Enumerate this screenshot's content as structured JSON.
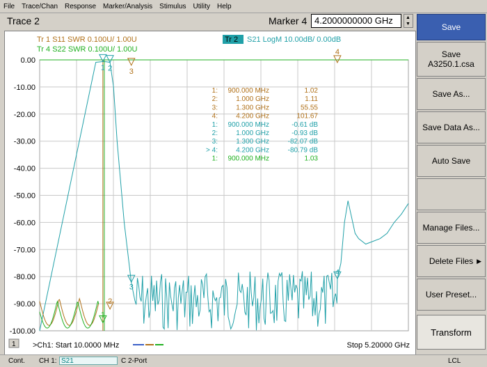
{
  "menu": [
    "File",
    "Trace/Chan",
    "Response",
    "Marker/Analysis",
    "Stimulus",
    "Utility",
    "Help"
  ],
  "header": {
    "trace_title": "Trace 2",
    "marker_label": "Marker 4",
    "marker_value": "4.2000000000 GHz"
  },
  "traces": [
    {
      "label": "Tr  1  S11 SWR 0.100U/  1.00U",
      "color": "#b07018"
    },
    {
      "label": "Tr  4  S22 SWR 0.100U/  1.00U",
      "color": "#20b020"
    },
    {
      "label_box": "Tr  2",
      "label_rest": "S21 LogM 10.00dB/  0.00dB",
      "color": "#20a0a8"
    }
  ],
  "chart_data": {
    "type": "line",
    "ylim": [
      -100,
      0
    ],
    "y_ticks": [
      "0.00",
      "-10.00",
      "-20.00",
      "-30.00",
      "-40.00",
      "-50.00",
      "-60.00",
      "-70.00",
      "-80.00",
      "-90.00",
      "-100.00"
    ],
    "x_start": "10.0000 MHz",
    "x_stop": "5.20000 GHz",
    "start_label": ">Ch1: Start  10.0000 MHz",
    "stop_label": "Stop  5.20000 GHz",
    "channel_num": "1",
    "series": [
      {
        "name": "S21 LogM",
        "x_ghz": [
          0.01,
          0.8,
          0.87,
          0.9,
          0.95,
          1.0,
          1.05,
          1.1,
          1.2,
          1.3,
          4.2,
          4.25,
          4.3,
          4.35,
          4.4,
          4.45,
          4.5,
          4.6,
          4.7,
          4.8,
          4.9,
          5.0,
          5.1,
          5.2
        ],
        "values": [
          -100,
          -0.9,
          -0.7,
          -0.61,
          -0.7,
          -0.93,
          -10,
          -30,
          -60,
          -82.07,
          -80.79,
          -75,
          -60,
          -52,
          -58,
          -64,
          -66,
          -68,
          -67,
          -66,
          -64,
          -60,
          -57,
          -53
        ]
      }
    ],
    "markers": [
      {
        "num": "1:",
        "freq": "900.000 MHz",
        "value": "1.02",
        "color": "#b07018"
      },
      {
        "num": "2:",
        "freq": "1.000 GHz",
        "value": "1.11",
        "color": "#b07018"
      },
      {
        "num": "3:",
        "freq": "1.300 GHz",
        "value": "55.55",
        "color": "#b07018"
      },
      {
        "num": "4:",
        "freq": "4.200 GHz",
        "value": "101.67",
        "color": "#b07018"
      },
      {
        "num": "1:",
        "freq": "900.000 MHz",
        "value": "-0.61 dB",
        "color": "#20a0a8"
      },
      {
        "num": "2:",
        "freq": "1.000 GHz",
        "value": "-0.93 dB",
        "color": "#20a0a8"
      },
      {
        "num": "3:",
        "freq": "1.300 GHz",
        "value": "-82.07 dB",
        "color": "#20a0a8"
      },
      {
        "num": "> 4:",
        "freq": "4.200 GHz",
        "value": "-80.79 dB",
        "color": "#20a0a8"
      },
      {
        "num": "1:",
        "freq": "900.000 MHz",
        "value": "1.03",
        "color": "#20b020"
      }
    ],
    "marker_flags": [
      {
        "text": "1",
        "color": "#20a0a8"
      },
      {
        "text": "2",
        "color": "#20a0a8"
      },
      {
        "text": "3",
        "color": "#b07018"
      },
      {
        "text": "4",
        "color": "#b07018"
      },
      {
        "text": "3",
        "color": "#20a0a8"
      },
      {
        "text": "4",
        "color": "#20a0a8"
      },
      {
        "text": "1",
        "color": "#20b020"
      },
      {
        "text": "2",
        "color": "#b07018"
      }
    ]
  },
  "softkeys": [
    {
      "label": "Save",
      "sub": "",
      "active": true,
      "arrow": ""
    },
    {
      "label": "Save",
      "sub": "A3250.1.csa",
      "active": false,
      "arrow": ""
    },
    {
      "label": "Save As...",
      "sub": "",
      "active": false,
      "arrow": ""
    },
    {
      "label": "Save Data As...",
      "sub": "",
      "active": false,
      "arrow": ""
    },
    {
      "label": "Auto Save",
      "sub": "",
      "active": false,
      "arrow": ""
    },
    {
      "label": "",
      "sub": "",
      "active": false,
      "arrow": ""
    },
    {
      "label": "Manage Files...",
      "sub": "",
      "active": false,
      "arrow": ""
    },
    {
      "label": "Delete Files",
      "sub": "",
      "active": false,
      "arrow": "▶"
    },
    {
      "label": "User Preset...",
      "sub": "",
      "active": false,
      "arrow": ""
    },
    {
      "label": "Transform",
      "sub": "",
      "active": false,
      "arrow": ""
    }
  ],
  "status": {
    "mode": "Cont.",
    "ch": "CH 1:",
    "param": "S21",
    "cal": "C",
    "port": "2-Port",
    "lcl": "LCL"
  }
}
